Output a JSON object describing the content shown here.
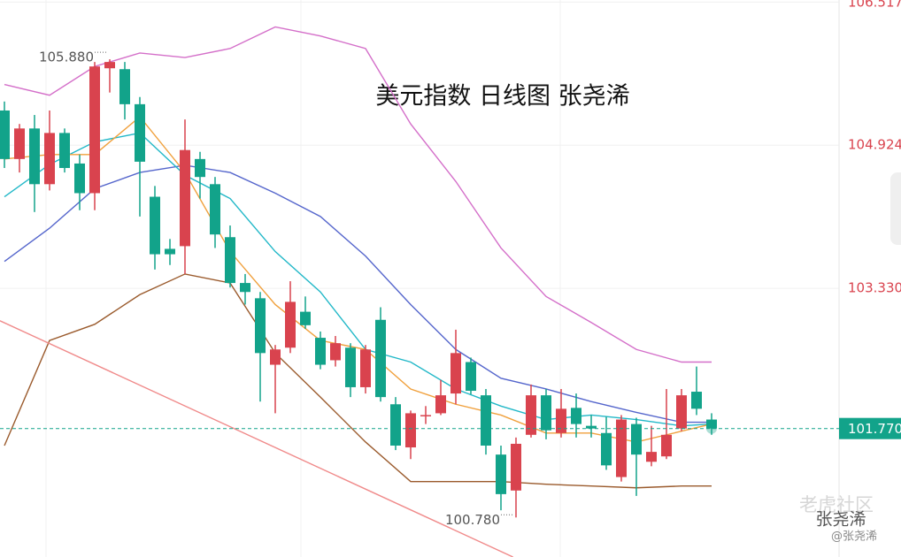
{
  "chart_data": {
    "type": "candlestick",
    "title": "美元指数  日线图  张尧浠",
    "up_color": "#d9434e",
    "down_color": "#12a38a",
    "ylim": [
      100.34,
      106.54
    ],
    "yticks": [
      106.517,
      104.924,
      {
        "value": 103.33,
        "label": "103.330"
      }
    ],
    "grid": true,
    "last_price": {
      "value": 101.77,
      "label": "101.770"
    },
    "annotations": [
      {
        "value": 105.88,
        "label": "105.880"
      },
      {
        "value": 100.78,
        "label": "100.780"
      }
    ],
    "candles": {
      "open": [
        105.31,
        104.77,
        105.11,
        104.49,
        105.06,
        104.72,
        104.39,
        105.78,
        105.77,
        105.38,
        104.35,
        103.77,
        103.8,
        104.77,
        104.49,
        103.9,
        103.39,
        103.22,
        102.48,
        102.67,
        103.07,
        102.78,
        102.53,
        102.67,
        102.23,
        102.98,
        102.04,
        101.56,
        101.92,
        101.94,
        102.16,
        102.51,
        102.14,
        101.48,
        101.08,
        101.7,
        102.14,
        101.72,
        102.0,
        101.8,
        101.72,
        101.23,
        101.82,
        101.4,
        101.46,
        101.77,
        102.18,
        101.87
      ],
      "high": [
        105.41,
        105.16,
        105.26,
        105.31,
        105.11,
        104.82,
        105.85,
        105.88,
        105.85,
        105.46,
        104.47,
        103.88,
        105.21,
        104.85,
        104.57,
        104.03,
        103.49,
        103.29,
        102.7,
        103.41,
        103.24,
        102.85,
        102.8,
        102.72,
        102.7,
        103.12,
        102.12,
        101.97,
        102.02,
        102.31,
        102.87,
        102.56,
        102.21,
        101.58,
        101.67,
        102.26,
        102.21,
        102.21,
        102.16,
        101.92,
        101.9,
        101.92,
        101.89,
        101.8,
        102.21,
        102.21,
        102.46,
        101.94
      ],
      "low": [
        104.67,
        104.62,
        104.18,
        104.42,
        104.62,
        104.2,
        104.2,
        105.51,
        105.21,
        104.13,
        103.54,
        103.59,
        103.49,
        104.33,
        103.78,
        103.34,
        103.15,
        102.07,
        101.94,
        102.61,
        102.88,
        102.43,
        102.46,
        102.12,
        102.16,
        102.07,
        101.53,
        101.43,
        101.82,
        101.92,
        102.04,
        102.15,
        101.48,
        100.86,
        100.78,
        101.67,
        101.65,
        101.67,
        101.67,
        101.67,
        101.31,
        101.18,
        101.02,
        101.35,
        101.43,
        101.74,
        101.92,
        101.7
      ],
      "close": [
        104.77,
        105.11,
        104.49,
        105.06,
        104.67,
        104.39,
        105.8,
        105.85,
        105.38,
        104.74,
        103.71,
        103.71,
        104.87,
        104.57,
        103.93,
        103.39,
        103.29,
        102.61,
        102.65,
        103.18,
        102.92,
        102.48,
        102.72,
        102.23,
        102.65,
        102.12,
        101.58,
        101.94,
        101.92,
        102.14,
        102.61,
        102.19,
        101.58,
        101.04,
        101.6,
        102.14,
        101.75,
        101.99,
        101.82,
        101.77,
        101.36,
        101.87,
        101.48,
        101.51,
        101.7,
        102.14,
        101.99,
        101.77
      ]
    },
    "lines": [
      {
        "color": "#d46fc9",
        "x": [
          0,
          3,
          6,
          9,
          12,
          15,
          18,
          21,
          24,
          27,
          30,
          33,
          36,
          39,
          42,
          45,
          47
        ],
        "values": [
          105.6,
          105.48,
          105.8,
          105.95,
          105.9,
          106.0,
          106.24,
          106.14,
          106.0,
          105.16,
          104.52,
          103.78,
          103.24,
          102.95,
          102.65,
          102.51,
          102.51
        ]
      },
      {
        "color": "#9a5a2c",
        "x": [
          0,
          3,
          6,
          9,
          12,
          15,
          18,
          21,
          24,
          27,
          30,
          33,
          36,
          39,
          42,
          45,
          47
        ],
        "values": [
          101.58,
          102.75,
          102.93,
          103.26,
          103.49,
          103.39,
          102.61,
          102.12,
          101.62,
          101.18,
          101.18,
          101.18,
          101.15,
          101.13,
          101.11,
          101.13,
          101.13
        ]
      },
      {
        "color": "#5566cc",
        "x": [
          0,
          3,
          6,
          9,
          12,
          15,
          18,
          21,
          24,
          27,
          30,
          33,
          36,
          39,
          42,
          45,
          47
        ],
        "values": [
          103.63,
          104.0,
          104.44,
          104.62,
          104.7,
          104.62,
          104.39,
          104.13,
          103.69,
          103.15,
          102.65,
          102.33,
          102.21,
          102.07,
          101.95,
          101.84,
          101.84
        ]
      },
      {
        "color": "#22b8c8",
        "x": [
          0,
          3,
          6,
          9,
          12,
          15,
          18,
          21,
          24,
          27,
          30,
          33,
          36,
          39,
          42,
          45,
          47
        ],
        "values": [
          104.35,
          104.71,
          104.96,
          105.06,
          104.59,
          104.33,
          103.74,
          103.29,
          102.65,
          102.51,
          102.21,
          102.02,
          101.87,
          101.92,
          101.87,
          101.8,
          101.82
        ]
      },
      {
        "color": "#f0a03c",
        "x": [
          0,
          3,
          6,
          9,
          12,
          15,
          18,
          21,
          24,
          27,
          30,
          33,
          36,
          39,
          42,
          45,
          47
        ],
        "values": [
          104.77,
          104.82,
          104.82,
          105.24,
          104.62,
          103.74,
          103.15,
          102.75,
          102.65,
          102.21,
          102.04,
          101.92,
          101.72,
          101.72,
          101.62,
          101.74,
          101.82
        ]
      },
      {
        "color": "#f08a8a",
        "x": [
          -0.3,
          33.8
        ],
        "values": [
          102.97,
          100.34
        ]
      }
    ],
    "watermark": [
      "老虎社区",
      "张尧浠",
      "@张尧浠"
    ]
  }
}
